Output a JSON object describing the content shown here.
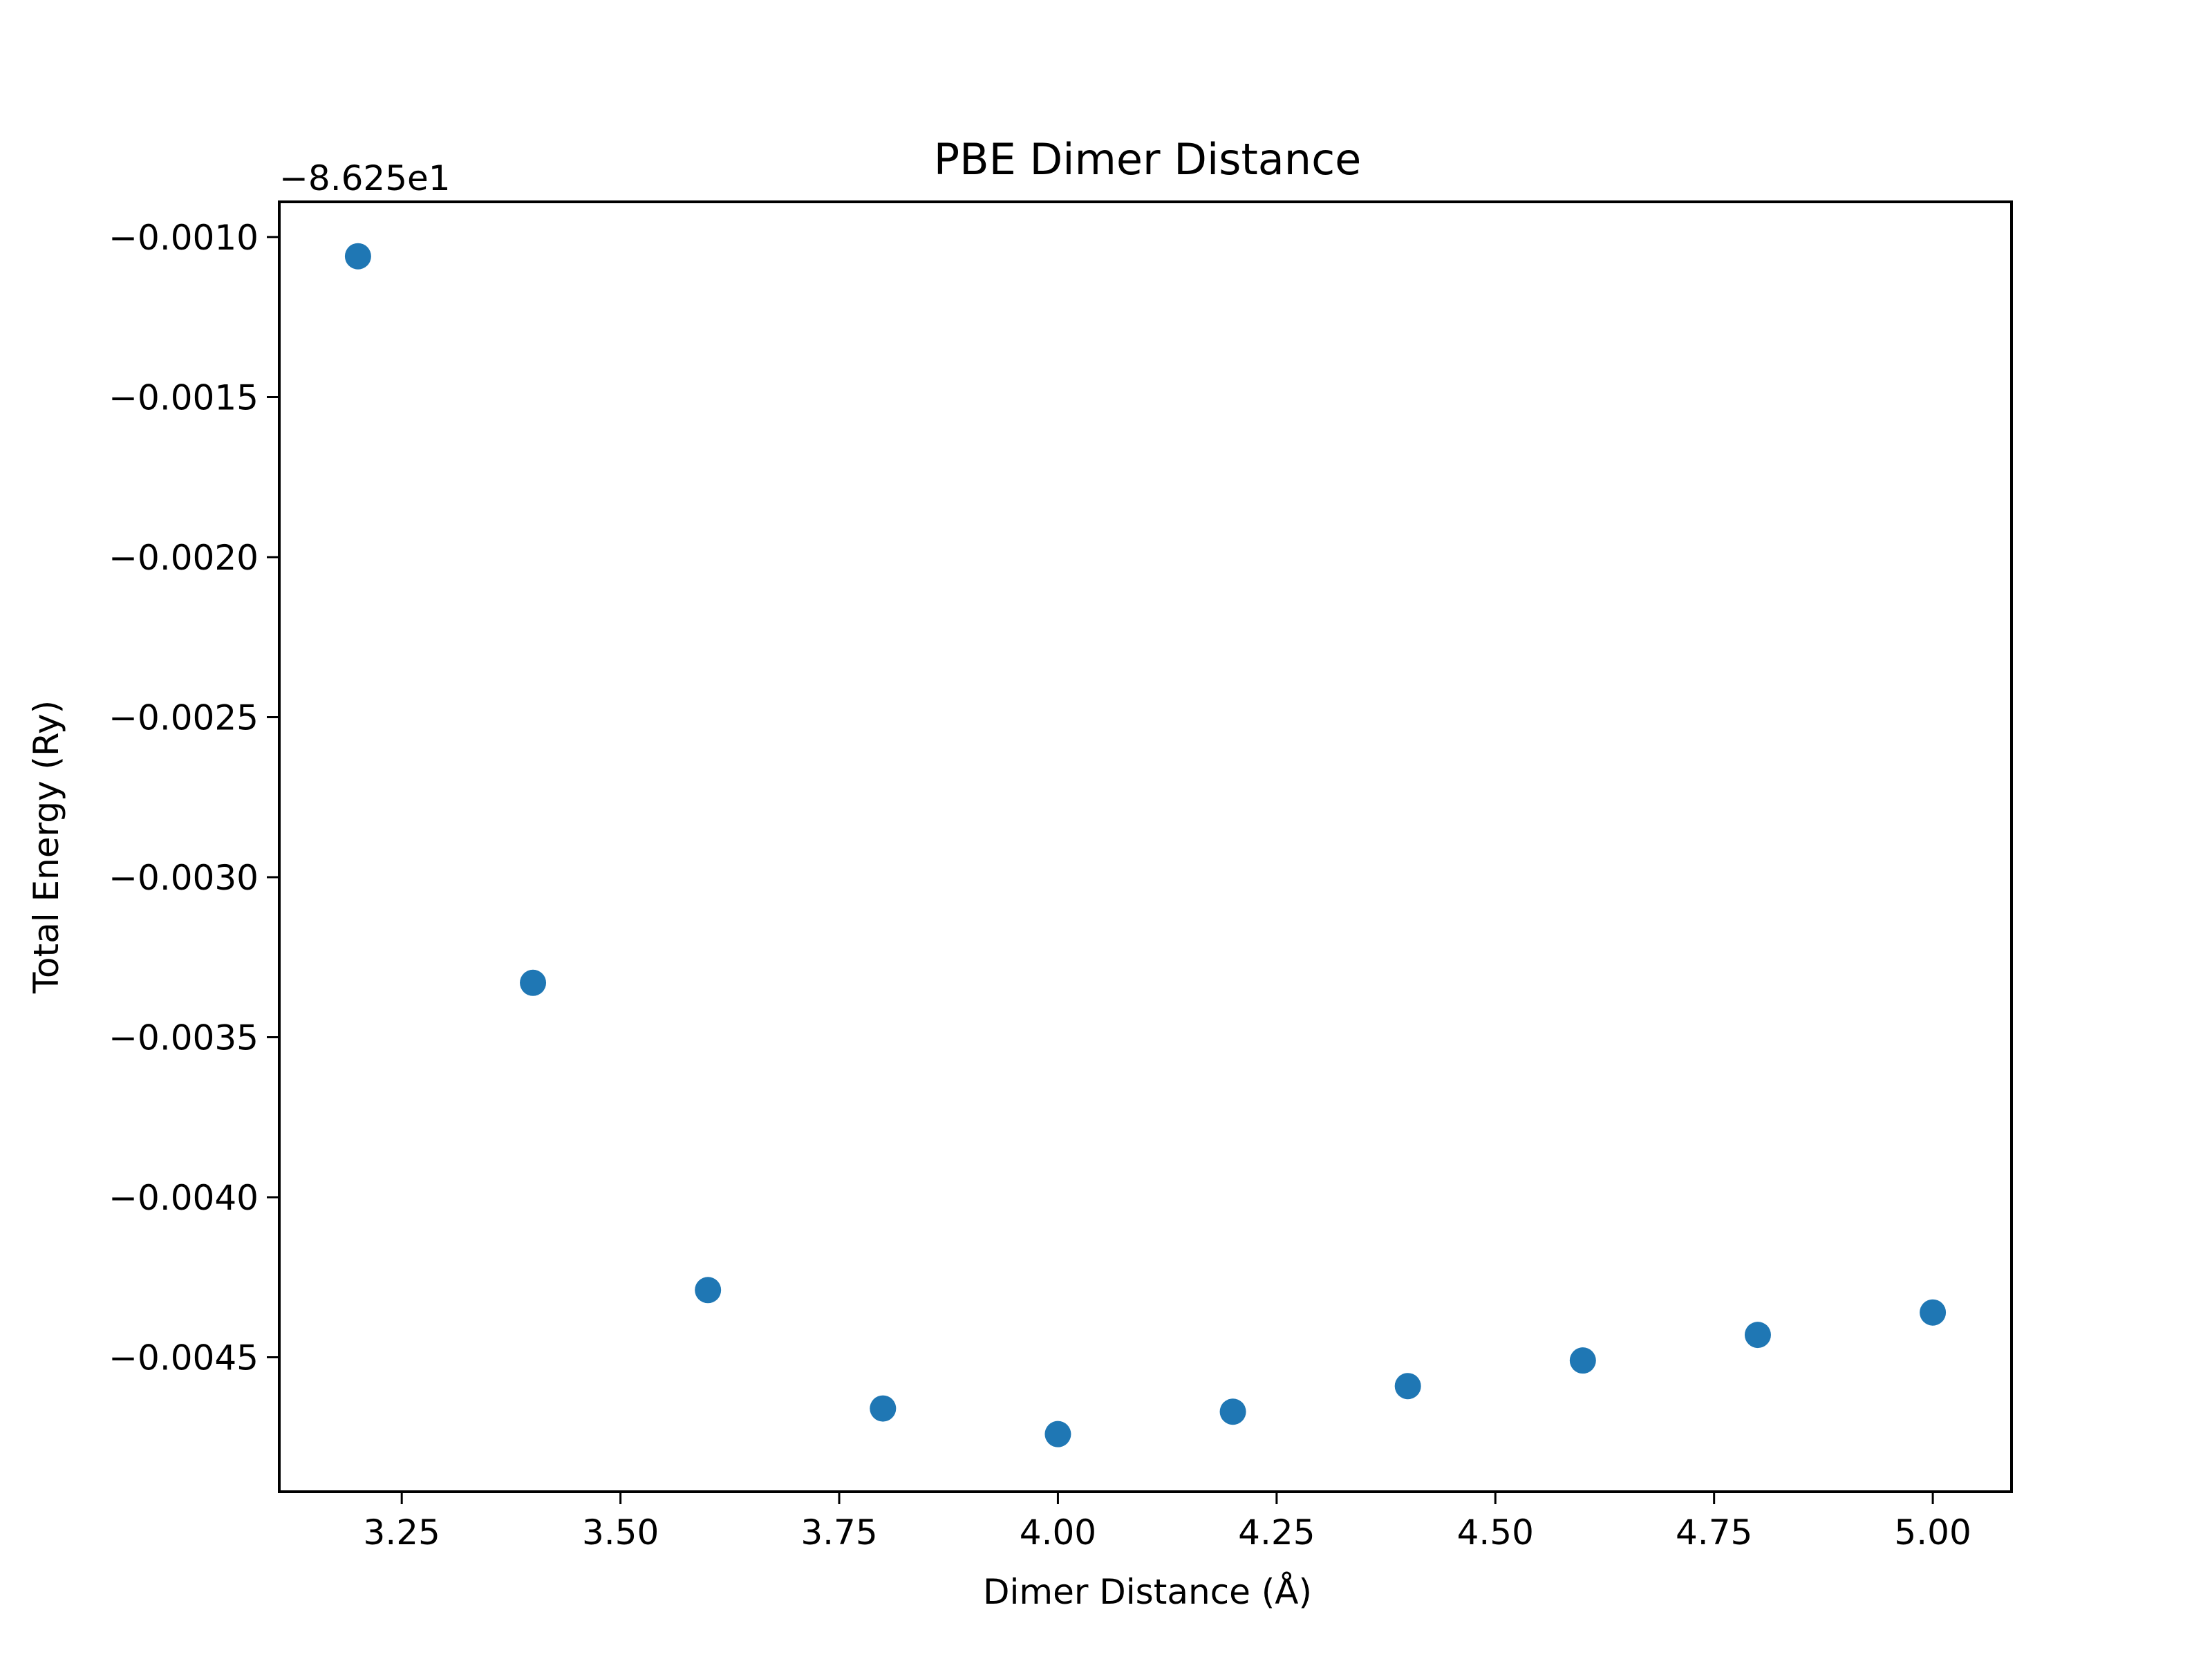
{
  "chart_data": {
    "type": "scatter",
    "title": "PBE Dimer Distance",
    "xlabel": "Dimer Distance (Å)",
    "ylabel": "Total Energy (Ry)",
    "y_offset_label": "−8.625e1",
    "xlim": [
      3.11,
      5.09
    ],
    "ylim": [
      -0.00492,
      -0.00089
    ],
    "x_ticks": [
      3.25,
      3.5,
      3.75,
      4.0,
      4.25,
      4.5,
      4.75,
      5.0
    ],
    "x_tick_labels": [
      "3.25",
      "3.50",
      "3.75",
      "4.00",
      "4.25",
      "4.50",
      "4.75",
      "5.00"
    ],
    "y_ticks": [
      -0.001,
      -0.0015,
      -0.002,
      -0.0025,
      -0.003,
      -0.0035,
      -0.004,
      -0.0045
    ],
    "y_tick_labels": [
      "−0.0010",
      "−0.0015",
      "−0.0020",
      "−0.0025",
      "−0.0030",
      "−0.0035",
      "−0.0040",
      "−0.0045"
    ],
    "grid": false,
    "marker_color": "#1f77b4",
    "series": [
      {
        "x": [
          3.2,
          3.4,
          3.6,
          3.8,
          4.0,
          4.2,
          4.4,
          4.6,
          4.8,
          5.0
        ],
        "y": [
          -0.00106,
          -0.00333,
          -0.00429,
          -0.00466,
          -0.00474,
          -0.00467,
          -0.00459,
          -0.00451,
          -0.00443,
          -0.00436
        ]
      }
    ]
  }
}
